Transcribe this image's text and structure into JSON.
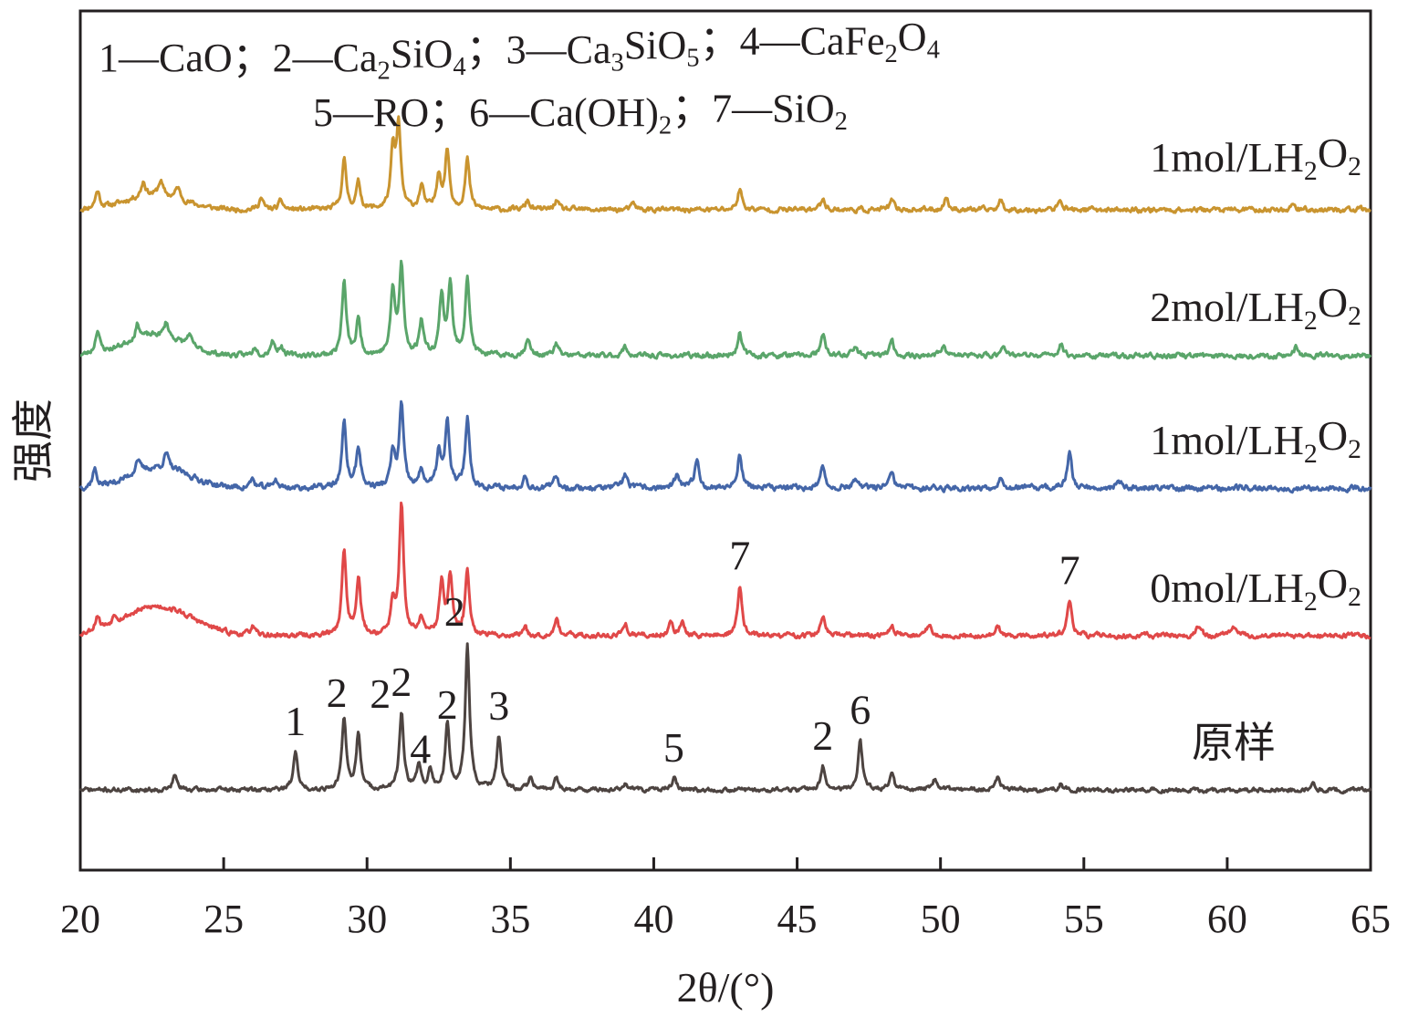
{
  "chart_data": {
    "type": "line",
    "title": "",
    "xlabel": "2θ/(°)",
    "ylabel": "强度",
    "xlim": [
      20,
      65
    ],
    "xticks": [
      20,
      25,
      30,
      35,
      40,
      45,
      50,
      55,
      60,
      65
    ],
    "xtick_labels": [
      "20",
      "25",
      "30",
      "35",
      "40",
      "45",
      "50",
      "55",
      "60",
      "65"
    ],
    "legend_lines": [
      [
        {
          "t": "1—CaO；"
        },
        {
          "t": "2—Ca"
        },
        {
          "t": "2",
          "sub": true
        },
        {
          "t": "SiO"
        },
        {
          "t": "4",
          "sub": true
        },
        {
          "t": "；"
        },
        {
          "t": "3—Ca"
        },
        {
          "t": "3",
          "sub": true
        },
        {
          "t": "SiO"
        },
        {
          "t": "5",
          "sub": true
        },
        {
          "t": "；"
        },
        {
          "t": "4—CaFe"
        },
        {
          "t": "2",
          "sub": true
        },
        {
          "t": "O"
        },
        {
          "t": "4",
          "sub": true
        }
      ],
      [
        {
          "t": "5—RO；"
        },
        {
          "t": "6—Ca(OH)"
        },
        {
          "t": "2",
          "sub": true
        },
        {
          "t": "；"
        },
        {
          "t": "7—SiO"
        },
        {
          "t": "2",
          "sub": true
        }
      ]
    ],
    "series": [
      {
        "name": "1mol/LH2O2",
        "label_parts": [
          {
            "t": "1mol/LH"
          },
          {
            "t": "2",
            "sub": true
          },
          {
            "t": "O"
          },
          {
            "t": "2",
            "sub": true
          }
        ],
        "color": "#c9942f",
        "seed": 11,
        "noise": 0.7,
        "peaks": [
          [
            20.6,
            6
          ],
          [
            22.2,
            5
          ],
          [
            22.8,
            5
          ],
          [
            23.4,
            4
          ],
          [
            26.3,
            4
          ],
          [
            27.0,
            3
          ],
          [
            29.2,
            17
          ],
          [
            29.7,
            9
          ],
          [
            30.9,
            19
          ],
          [
            31.1,
            28
          ],
          [
            31.9,
            8
          ],
          [
            32.5,
            12
          ],
          [
            32.8,
            20
          ],
          [
            33.5,
            17
          ],
          [
            35.6,
            3
          ],
          [
            36.6,
            3
          ],
          [
            39.3,
            2
          ],
          [
            43.0,
            7
          ],
          [
            45.9,
            4
          ],
          [
            48.3,
            3
          ],
          [
            50.2,
            4
          ],
          [
            52.1,
            3
          ],
          [
            54.2,
            3
          ],
          [
            62.3,
            2
          ]
        ],
        "humps": [
          [
            22.6,
            1.0,
            5.0
          ]
        ]
      },
      {
        "name": "2mol/LH2O2",
        "label_parts": [
          {
            "t": "2mol/LH"
          },
          {
            "t": "2",
            "sub": true
          },
          {
            "t": "O"
          },
          {
            "t": "2",
            "sub": true
          }
        ],
        "color": "#5aa56a",
        "seed": 23,
        "noise": 0.7,
        "peaks": [
          [
            20.6,
            8
          ],
          [
            22.0,
            5
          ],
          [
            23.0,
            5
          ],
          [
            23.8,
            4
          ],
          [
            26.1,
            3
          ],
          [
            26.7,
            5
          ],
          [
            27.0,
            3
          ],
          [
            29.2,
            25
          ],
          [
            29.7,
            12
          ],
          [
            30.9,
            22
          ],
          [
            31.2,
            30
          ],
          [
            31.9,
            12
          ],
          [
            32.6,
            20
          ],
          [
            32.9,
            24
          ],
          [
            33.5,
            27
          ],
          [
            35.6,
            6
          ],
          [
            36.6,
            4
          ],
          [
            39.0,
            3
          ],
          [
            43.0,
            8
          ],
          [
            45.9,
            7
          ],
          [
            47.0,
            3
          ],
          [
            48.3,
            5
          ],
          [
            50.1,
            4
          ],
          [
            52.2,
            4
          ],
          [
            54.2,
            4
          ],
          [
            62.4,
            3
          ]
        ],
        "humps": [
          [
            22.6,
            1.0,
            7.0
          ]
        ]
      },
      {
        "name": "1mol/LH2O2",
        "label_parts": [
          {
            "t": "1mol/LH"
          },
          {
            "t": "2",
            "sub": true
          },
          {
            "t": "O"
          },
          {
            "t": "2",
            "sub": true
          }
        ],
        "color": "#4466a8",
        "seed": 37,
        "noise": 0.8,
        "peaks": [
          [
            20.5,
            6
          ],
          [
            22.0,
            5
          ],
          [
            23.0,
            5
          ],
          [
            26.0,
            3
          ],
          [
            26.8,
            3
          ],
          [
            29.2,
            22
          ],
          [
            29.7,
            14
          ],
          [
            30.9,
            12
          ],
          [
            31.2,
            28
          ],
          [
            31.9,
            6
          ],
          [
            32.5,
            12
          ],
          [
            32.8,
            22
          ],
          [
            33.5,
            24
          ],
          [
            35.5,
            4
          ],
          [
            36.6,
            4
          ],
          [
            39.0,
            5
          ],
          [
            40.8,
            4
          ],
          [
            41.5,
            10
          ],
          [
            43.0,
            12
          ],
          [
            45.9,
            7
          ],
          [
            47.0,
            3
          ],
          [
            48.3,
            5
          ],
          [
            52.1,
            4
          ],
          [
            54.5,
            12
          ],
          [
            56.2,
            3
          ]
        ],
        "humps": [
          [
            22.8,
            1.0,
            7.0
          ]
        ]
      },
      {
        "name": "0mol/LH2O2",
        "label_parts": [
          {
            "t": "0mol/LH"
          },
          {
            "t": "2",
            "sub": true
          },
          {
            "t": "O"
          },
          {
            "t": "2",
            "sub": true
          }
        ],
        "color": "#e04848",
        "seed": 53,
        "noise": 0.7,
        "peaks": [
          [
            20.6,
            5
          ],
          [
            21.2,
            3
          ],
          [
            26.0,
            3
          ],
          [
            29.2,
            29
          ],
          [
            29.7,
            20
          ],
          [
            30.9,
            10
          ],
          [
            31.2,
            45
          ],
          [
            31.9,
            6
          ],
          [
            32.6,
            18
          ],
          [
            32.9,
            20
          ],
          [
            33.5,
            22
          ],
          [
            35.5,
            3
          ],
          [
            36.6,
            6
          ],
          [
            39.0,
            4
          ],
          [
            40.6,
            5
          ],
          [
            41.0,
            4
          ],
          [
            43.0,
            17
          ],
          [
            45.9,
            7
          ],
          [
            48.3,
            4
          ],
          [
            49.6,
            4
          ],
          [
            52.0,
            3
          ],
          [
            54.5,
            12
          ],
          [
            59.0,
            3
          ],
          [
            60.2,
            3
          ]
        ],
        "humps": [
          [
            22.7,
            1.2,
            10.0
          ]
        ]
      },
      {
        "name": "原样",
        "label_parts": [
          {
            "t": "原样"
          }
        ],
        "color": "#4d4441",
        "seed": 71,
        "noise": 0.6,
        "peaks": [
          [
            23.3,
            5
          ],
          [
            27.5,
            13
          ],
          [
            29.2,
            24
          ],
          [
            29.7,
            19
          ],
          [
            31.2,
            26
          ],
          [
            31.8,
            8
          ],
          [
            32.2,
            6
          ],
          [
            32.8,
            22
          ],
          [
            33.5,
            50
          ],
          [
            34.6,
            18
          ],
          [
            35.7,
            4
          ],
          [
            36.6,
            4
          ],
          [
            39.0,
            2
          ],
          [
            40.7,
            4
          ],
          [
            45.9,
            8
          ],
          [
            47.2,
            17
          ],
          [
            48.3,
            5
          ],
          [
            49.8,
            4
          ],
          [
            52.0,
            4
          ],
          [
            54.2,
            2
          ],
          [
            63.0,
            2
          ]
        ],
        "humps": []
      }
    ],
    "peak_labels": [
      {
        "text": "7",
        "x": 43.0,
        "series": 3
      },
      {
        "text": "7",
        "x": 54.5,
        "series": 3
      },
      {
        "text": "1",
        "x": 27.5,
        "series": 4
      },
      {
        "text": "2",
        "x": 29.2,
        "series": 4
      },
      {
        "text": "2",
        "x": 29.7,
        "series": 4
      },
      {
        "text": "2",
        "x": 31.2,
        "series": 4
      },
      {
        "text": "4",
        "x": 31.8,
        "series": 4
      },
      {
        "text": "2",
        "x": 32.8,
        "series": 4
      },
      {
        "text": "2",
        "x": 33.5,
        "series": 4
      },
      {
        "text": "3",
        "x": 34.6,
        "series": 4
      },
      {
        "text": "5",
        "x": 40.7,
        "series": 4
      },
      {
        "text": "2",
        "x": 45.9,
        "series": 4
      },
      {
        "text": "6",
        "x": 47.2,
        "series": 4
      }
    ]
  }
}
